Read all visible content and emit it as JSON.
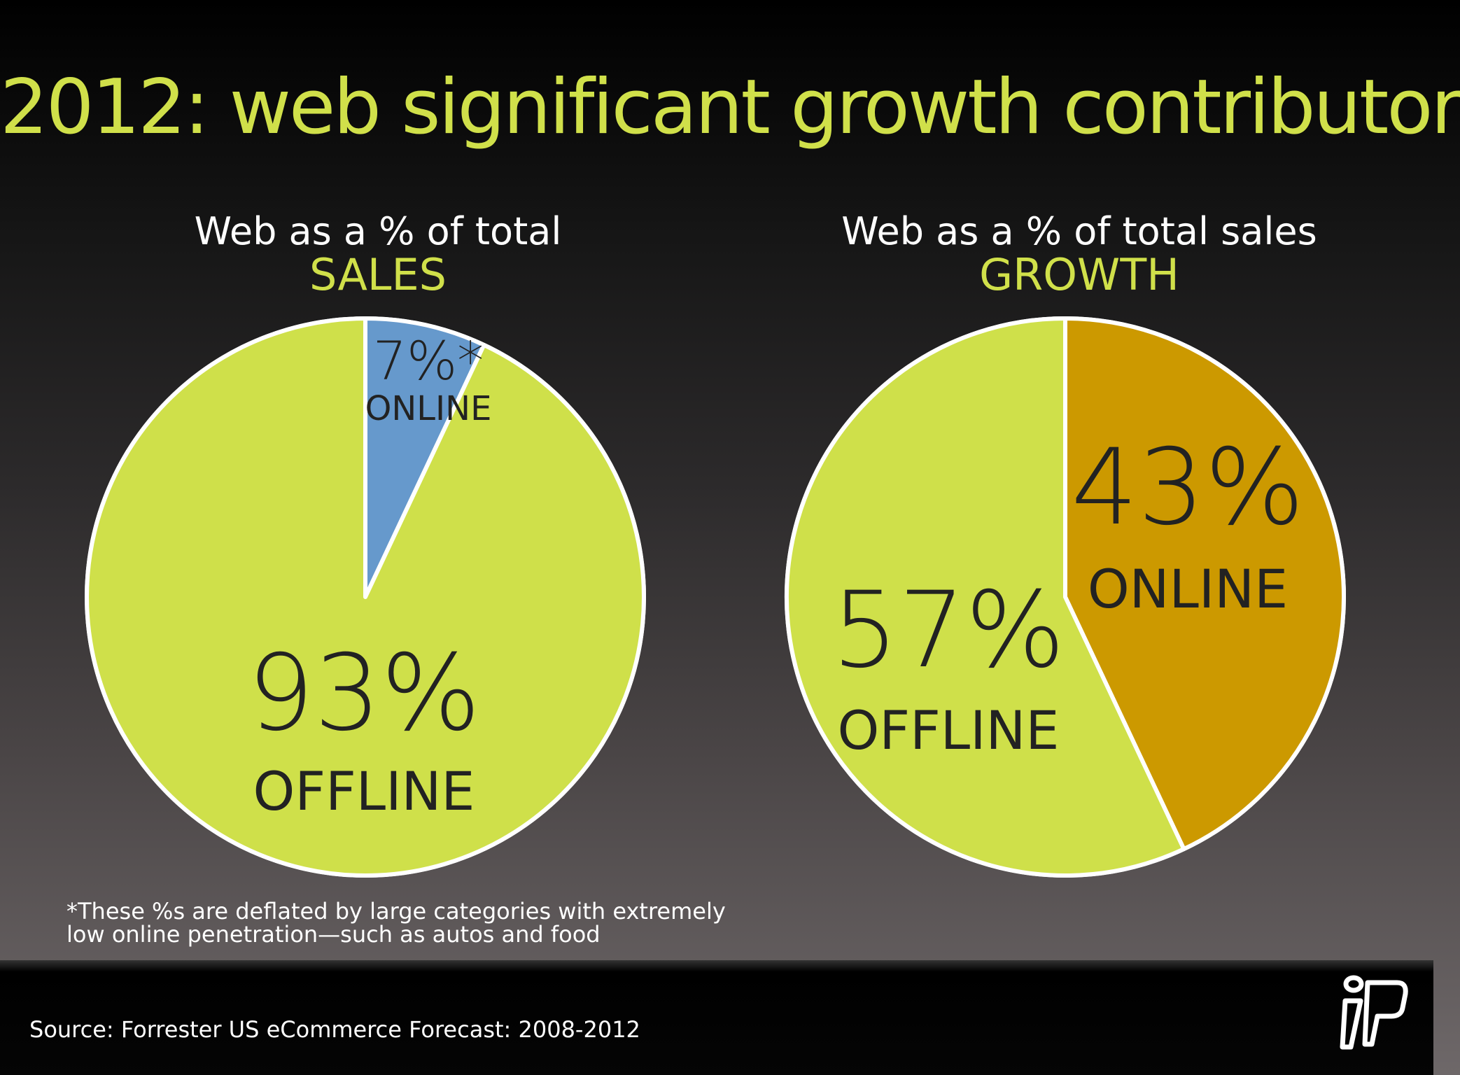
{
  "slide": {
    "title": "2012: web significant growth contributor",
    "footnote_line1": "*These %s are deflated by large categories with extremely",
    "footnote_line2": "low online penetration—such as autos and food",
    "source": "Source: Forrester US eCommerce Forecast: 2008-2012",
    "logo_icon": "fp-logo-icon"
  },
  "colors": {
    "accent": "#d0e04a",
    "offline": "#cfe04a",
    "online_sales": "#6699cc",
    "online_growth": "#cc9900",
    "outline": "#ffffff",
    "label_text": "#222222"
  },
  "chart_data": [
    {
      "type": "pie",
      "title": "Web as a % of total",
      "subtitle": "SALES",
      "slices": [
        {
          "name": "ONLINE",
          "value": 7,
          "value_label": "7%*",
          "color": "#6699cc"
        },
        {
          "name": "OFFLINE",
          "value": 93,
          "value_label": "93%",
          "color": "#cfe04a"
        }
      ]
    },
    {
      "type": "pie",
      "title": "Web as a % of total sales",
      "subtitle": "GROWTH",
      "slices": [
        {
          "name": "ONLINE",
          "value": 43,
          "value_label": "43%",
          "color": "#cc9900"
        },
        {
          "name": "OFFLINE",
          "value": 57,
          "value_label": "57%",
          "color": "#cfe04a"
        }
      ]
    }
  ]
}
